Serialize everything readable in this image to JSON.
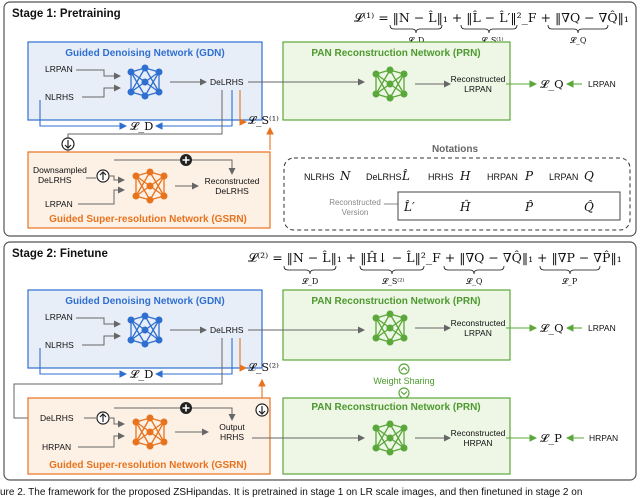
{
  "stage1": {
    "title": "Stage 1: Pretraining",
    "loss_equation": "𝓛⁽¹⁾ = ‖N − L̂‖₁ + ‖L̂ − L̂′‖²_F + ‖∇Q − ∇Q̂‖₁",
    "loss_subscripts": [
      "𝓛_D",
      "𝓛_S⁽¹⁾",
      "𝓛_Q"
    ],
    "gdn_title": "Guided Denoising Network (GDN)",
    "prn_title": "PAN Reconstruction Network (PRN)",
    "gsrn_title": "Guided Super-resolution Network (GSRN)",
    "lrpan_in": "LRPAN",
    "nlrhs_in": "NLRHS",
    "delrhs": "DeLRHS",
    "reconstructed_lrpan": [
      "Reconstructed",
      "LRPAN"
    ],
    "loss_q": "𝓛_Q",
    "lrpan_target": "LRPAN",
    "loss_d": "𝓛_D",
    "loss_s": "𝓛_S⁽¹⁾",
    "downsampled_delrhs": [
      "Downsampled",
      "DeLRHS"
    ],
    "gsrn_lrpan": "LRPAN",
    "reconstructed_delrhs": [
      "Reconstructed",
      "DeLRHS"
    ]
  },
  "notations": {
    "title": "Notations",
    "items": [
      {
        "label": "NLRHS",
        "symbol": "N"
      },
      {
        "label": "DeLRHS",
        "symbol": "L̂"
      },
      {
        "label": "HRHS",
        "symbol": "H"
      },
      {
        "label": "HRPAN",
        "symbol": "P"
      },
      {
        "label": "LRPAN",
        "symbol": "Q"
      }
    ],
    "reconstructed_label": [
      "Reconstructed",
      "Version"
    ],
    "reconstructed_symbols": [
      "L̂′",
      "Ĥ",
      "P̂",
      "Q̂"
    ]
  },
  "stage2": {
    "title": "Stage 2: Finetune",
    "loss_equation": "𝓛⁽²⁾ = ‖N − L̂‖₁ + ‖Ĥ↓ − L̂‖²_F + ‖∇Q − ∇Q̂‖₁ + ‖∇P − ∇P̂‖₁",
    "loss_subscripts": [
      "𝓛_D",
      "𝓛_S⁽²⁾",
      "𝓛_Q",
      "𝓛_P"
    ],
    "gdn_title": "Guided Denoising Network (GDN)",
    "prn_title_top": "PAN Reconstruction Network (PRN)",
    "prn_title_bottom": "PAN Reconstruction Network (PRN)",
    "gsrn_title": "Guided Super-resolution Network (GSRN)",
    "lrpan_in": "LRPAN",
    "nlrhs_in": "NLRHS",
    "delrhs": "DeLRHS",
    "reconstructed_lrpan": [
      "Reconstructed",
      "LRPAN"
    ],
    "loss_q": "𝓛_Q",
    "lrpan_target": "LRPAN",
    "loss_d": "𝓛_D",
    "loss_s": "𝓛_S⁽²⁾",
    "weight_sharing": "Weight Sharing",
    "gsrn_delrhs": "DeLRHS",
    "gsrn_hrpan": "HRPAN",
    "output_hrhs": [
      "Output",
      "HRHS"
    ],
    "reconstructed_hrpan": [
      "Reconstructed",
      "HRPAN"
    ],
    "loss_p": "𝓛_P",
    "hrpan_target": "HRPAN"
  },
  "caption": "ure 2. The framework for the proposed ZSHipandas. It is pretrained in stage 1 on LR scale images, and then finetuned in stage 2 on",
  "colors": {
    "blue": "#2f6fd0",
    "blue_fill": "#e8eef8",
    "green": "#5aa83a",
    "green_fill": "#eef6e6",
    "orange": "#e8731e",
    "orange_fill": "#fdf1e6",
    "gray": "#666666"
  }
}
